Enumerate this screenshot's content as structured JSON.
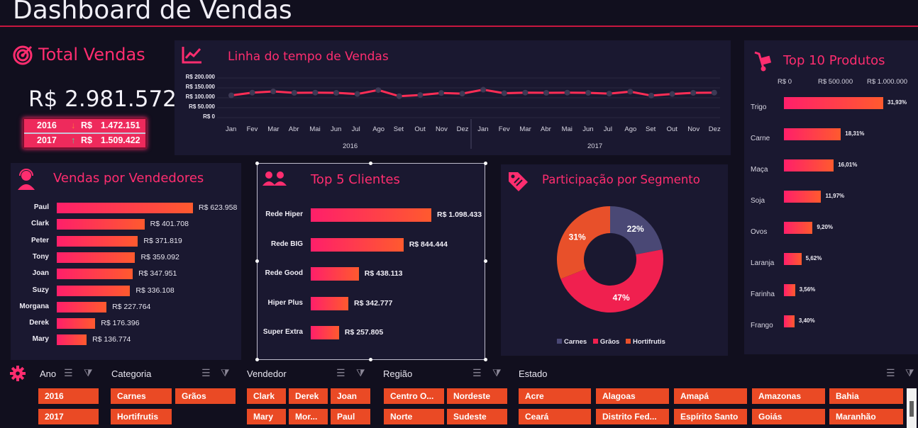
{
  "title": "Dashboard de Vendas",
  "total_vendas": {
    "label": "Total Vendas",
    "value": "R$ 2.981.572",
    "rows": [
      {
        "year": "2016",
        "arrow": "down",
        "currency": "R$",
        "value": "1.472.151"
      },
      {
        "year": "2017",
        "arrow": "up",
        "currency": "R$",
        "value": "1.509.422"
      }
    ]
  },
  "timeline": {
    "title": "Linha do tempo de Vendas",
    "y_ticks": [
      "R$ 200.000",
      "R$ 150.000",
      "R$ 100.000",
      "R$ 50.000",
      "R$ 0"
    ],
    "months": [
      "Jan",
      "Fev",
      "Mar",
      "Abr",
      "Mai",
      "Jun",
      "Jul",
      "Ago",
      "Set",
      "Out",
      "Nov",
      "Dez",
      "Jan",
      "Fev",
      "Mar",
      "Abr",
      "Mai",
      "Jun",
      "Jul",
      "Ago",
      "Set",
      "Out",
      "Nov",
      "Dez"
    ],
    "years": [
      "2016",
      "2017"
    ]
  },
  "chart_data": [
    {
      "type": "line",
      "title": "Linha do tempo de Vendas",
      "x": [
        "Jan 2016",
        "Fev 2016",
        "Mar 2016",
        "Abr 2016",
        "Mai 2016",
        "Jun 2016",
        "Jul 2016",
        "Ago 2016",
        "Set 2016",
        "Out 2016",
        "Nov 2016",
        "Dez 2016",
        "Jan 2017",
        "Fev 2017",
        "Mar 2017",
        "Abr 2017",
        "Mai 2017",
        "Jun 2017",
        "Jul 2017",
        "Ago 2017",
        "Set 2017",
        "Out 2017",
        "Nov 2017",
        "Dez 2017"
      ],
      "values": [
        112000,
        126000,
        132000,
        125000,
        126000,
        125000,
        119000,
        139000,
        108000,
        114000,
        124000,
        121000,
        141000,
        123000,
        126000,
        125000,
        126000,
        125000,
        121000,
        131000,
        111000,
        119000,
        125000,
        126000
      ],
      "ylim": [
        0,
        200000
      ]
    },
    {
      "type": "bar",
      "title": "Vendas por Vendedores",
      "categories": [
        "Paul",
        "Clark",
        "Peter",
        "Tony",
        "Joan",
        "Suzy",
        "Morgana",
        "Derek",
        "Mary"
      ],
      "values": [
        623958,
        401708,
        371819,
        359092,
        347951,
        336108,
        227764,
        176396,
        136774
      ],
      "labels": [
        "R$ 623.958",
        "R$ 401.708",
        "R$ 371.819",
        "R$ 359.092",
        "R$ 347.951",
        "R$ 336.108",
        "R$ 227.764",
        "R$ 176.396",
        "R$ 136.774"
      ]
    },
    {
      "type": "bar",
      "title": "Top 5 Clientes",
      "categories": [
        "Rede Hiper",
        "Rede BIG",
        "Rede Good",
        "Hiper Plus",
        "Super Extra"
      ],
      "values": [
        1098433,
        844444,
        438113,
        342777,
        257805
      ],
      "labels": [
        "R$ 1.098.433",
        "R$ 844.444",
        "R$ 438.113",
        "R$ 342.777",
        "R$ 257.805"
      ]
    },
    {
      "type": "pie",
      "title": "Participação por Segmento",
      "categories": [
        "Carnes",
        "Grãos",
        "Hortifrutis"
      ],
      "values": [
        22,
        47,
        31
      ],
      "labels": [
        "22%",
        "47%",
        "31%"
      ],
      "colors": [
        "#4a4875",
        "#f0204f",
        "#e8502a"
      ]
    },
    {
      "type": "bar",
      "title": "Top 10 Produtos",
      "axis_ticks": [
        "R$ 0",
        "R$ 500.000",
        "R$ 1.000.000"
      ],
      "categories": [
        "Trigo",
        "Carne",
        "Maça",
        "Soja",
        "Ovos",
        "Laranja",
        "Farinha",
        "Frango"
      ],
      "values": [
        31.93,
        18.31,
        16.01,
        11.97,
        9.2,
        5.62,
        3.56,
        3.4
      ],
      "labels": [
        "31,93%",
        "18,31%",
        "16,01%",
        "11,97%",
        "9,20%",
        "5,62%",
        "3,56%",
        "3,40%"
      ]
    }
  ],
  "sellers": {
    "title": "Vendas por Vendedores"
  },
  "clients": {
    "title": "Top 5 Clientes"
  },
  "segment": {
    "title": "Participação por Segmento",
    "legend": [
      "Carnes",
      "Grãos",
      "Hortifrutis"
    ]
  },
  "products": {
    "title": "Top 10 Produtos"
  },
  "slicers": {
    "ano": {
      "label": "Ano",
      "items": [
        "2016",
        "2017"
      ]
    },
    "categoria": {
      "label": "Categoria",
      "items": [
        "Carnes",
        "Grãos",
        "Hortifrutis"
      ]
    },
    "vendedor": {
      "label": "Vendedor",
      "items": [
        "Clark",
        "Derek",
        "Joan",
        "Mary",
        "Mor...",
        "Paul"
      ]
    },
    "regiao": {
      "label": "Região",
      "items": [
        "Centro O...",
        "Nordeste",
        "Norte",
        "Sudeste"
      ]
    },
    "estado": {
      "label": "Estado",
      "items": [
        "Acre",
        "Alagoas",
        "Amapá",
        "Amazonas",
        "Bahia",
        "Ceará",
        "Distrito Fed...",
        "Espírito Santo",
        "Goiás",
        "Maranhão"
      ]
    }
  },
  "colors": {
    "accent": "#ff2d6f",
    "bar_start": "#ff1f6a",
    "bar_end": "#ff5a2e",
    "chip": "#ea4a25",
    "panel": "#1a1830",
    "background": "#110f1e"
  }
}
